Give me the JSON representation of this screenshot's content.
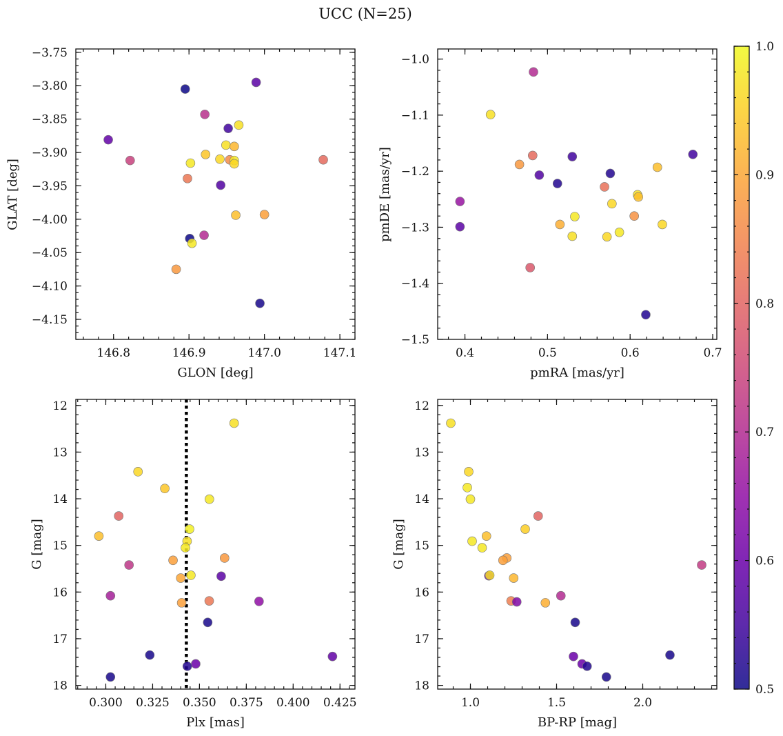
{
  "figure": {
    "title": "UCC (N=25)"
  },
  "colorbar": {
    "min": 0.5,
    "max": 1.0,
    "ticks": [
      0.5,
      0.6,
      0.7,
      0.8,
      0.9,
      1.0
    ],
    "tick_labels": [
      "0.5",
      "0.6",
      "0.7",
      "0.8",
      "0.9",
      "1.0"
    ],
    "colormap": "plasma"
  },
  "chart_data": [
    {
      "type": "scatter",
      "xlabel": "GLON [deg]",
      "ylabel": "GLAT [deg]",
      "xlim": [
        146.75,
        147.12
      ],
      "ylim": [
        -4.18,
        -3.745
      ],
      "y_inverted": false,
      "xticks": [
        146.8,
        146.9,
        147.0,
        147.1
      ],
      "xtick_labels": [
        "146.8",
        "146.9",
        "147.0",
        "147.1"
      ],
      "yticks": [
        -3.75,
        -3.8,
        -3.85,
        -3.9,
        -3.95,
        -4.0,
        -4.05,
        -4.1,
        -4.15
      ],
      "ytick_labels": [
        "−3.75",
        "−3.80",
        "−3.85",
        "−3.90",
        "−3.95",
        "−4.00",
        "−4.05",
        "−4.10",
        "−4.15"
      ],
      "points": [
        {
          "x": 146.895,
          "y": -3.805,
          "c": 0.5
        },
        {
          "x": 146.989,
          "y": -3.795,
          "c": 0.58
        },
        {
          "x": 146.921,
          "y": -3.843,
          "c": 0.71
        },
        {
          "x": 146.952,
          "y": -3.864,
          "c": 0.55
        },
        {
          "x": 146.966,
          "y": -3.859,
          "c": 0.97
        },
        {
          "x": 146.793,
          "y": -3.881,
          "c": 0.59
        },
        {
          "x": 146.822,
          "y": -3.912,
          "c": 0.74
        },
        {
          "x": 146.902,
          "y": -3.916,
          "c": 0.98
        },
        {
          "x": 146.922,
          "y": -3.903,
          "c": 0.94
        },
        {
          "x": 146.949,
          "y": -3.889,
          "c": 0.97
        },
        {
          "x": 146.96,
          "y": -3.891,
          "c": 0.92
        },
        {
          "x": 146.954,
          "y": -3.911,
          "c": 0.86
        },
        {
          "x": 146.941,
          "y": -3.91,
          "c": 0.96
        },
        {
          "x": 146.96,
          "y": -3.912,
          "c": 0.98
        },
        {
          "x": 146.96,
          "y": -3.917,
          "c": 0.96
        },
        {
          "x": 147.078,
          "y": -3.911,
          "c": 0.81
        },
        {
          "x": 146.898,
          "y": -3.939,
          "c": 0.83
        },
        {
          "x": 146.942,
          "y": -3.949,
          "c": 0.57
        },
        {
          "x": 146.962,
          "y": -3.994,
          "c": 0.93
        },
        {
          "x": 147.0,
          "y": -3.993,
          "c": 0.89
        },
        {
          "x": 146.92,
          "y": -4.024,
          "c": 0.7
        },
        {
          "x": 146.901,
          "y": -4.029,
          "c": 0.5
        },
        {
          "x": 146.904,
          "y": -4.036,
          "c": 0.98
        },
        {
          "x": 146.883,
          "y": -4.075,
          "c": 0.88
        },
        {
          "x": 146.994,
          "y": -4.126,
          "c": 0.51
        }
      ]
    },
    {
      "type": "scatter",
      "xlabel": "pmRA [mas/yr]",
      "ylabel": "pmDE [mas/yr]",
      "xlim": [
        0.367,
        0.705
      ],
      "ylim": [
        -1.5,
        -0.982
      ],
      "y_inverted": false,
      "xticks": [
        0.4,
        0.5,
        0.6,
        0.7
      ],
      "xtick_labels": [
        "0.4",
        "0.5",
        "0.6",
        "0.7"
      ],
      "yticks": [
        -1.0,
        -1.1,
        -1.2,
        -1.3,
        -1.4,
        -1.5
      ],
      "ytick_labels": [
        "−1.0",
        "−1.1",
        "−1.2",
        "−1.3",
        "−1.4",
        "−1.5"
      ],
      "points": [
        {
          "x": 0.483,
          "y": -1.023,
          "c": 0.7
        },
        {
          "x": 0.431,
          "y": -1.099,
          "c": 0.97
        },
        {
          "x": 0.466,
          "y": -1.188,
          "c": 0.88
        },
        {
          "x": 0.482,
          "y": -1.172,
          "c": 0.81
        },
        {
          "x": 0.49,
          "y": -1.207,
          "c": 0.57
        },
        {
          "x": 0.53,
          "y": -1.174,
          "c": 0.55
        },
        {
          "x": 0.576,
          "y": -1.204,
          "c": 0.52
        },
        {
          "x": 0.512,
          "y": -1.222,
          "c": 0.52
        },
        {
          "x": 0.569,
          "y": -1.228,
          "c": 0.82
        },
        {
          "x": 0.633,
          "y": -1.193,
          "c": 0.93
        },
        {
          "x": 0.676,
          "y": -1.17,
          "c": 0.55
        },
        {
          "x": 0.609,
          "y": -1.242,
          "c": 0.97
        },
        {
          "x": 0.61,
          "y": -1.246,
          "c": 0.93
        },
        {
          "x": 0.394,
          "y": -1.254,
          "c": 0.66
        },
        {
          "x": 0.578,
          "y": -1.258,
          "c": 0.96
        },
        {
          "x": 0.605,
          "y": -1.28,
          "c": 0.87
        },
        {
          "x": 0.533,
          "y": -1.281,
          "c": 0.98
        },
        {
          "x": 0.515,
          "y": -1.295,
          "c": 0.91
        },
        {
          "x": 0.639,
          "y": -1.295,
          "c": 0.96
        },
        {
          "x": 0.394,
          "y": -1.299,
          "c": 0.58
        },
        {
          "x": 0.587,
          "y": -1.309,
          "c": 0.98
        },
        {
          "x": 0.53,
          "y": -1.316,
          "c": 0.97
        },
        {
          "x": 0.572,
          "y": -1.317,
          "c": 0.96
        },
        {
          "x": 0.479,
          "y": -1.372,
          "c": 0.78
        },
        {
          "x": 0.619,
          "y": -1.456,
          "c": 0.52
        }
      ]
    },
    {
      "type": "scatter",
      "xlabel": "Plx [mas]",
      "ylabel": "G [mag]",
      "xlim": [
        0.284,
        0.433
      ],
      "ylim": [
        11.87,
        18.08
      ],
      "y_inverted": true,
      "xticks": [
        0.3,
        0.325,
        0.35,
        0.375,
        0.4,
        0.425
      ],
      "xtick_labels": [
        "0.300",
        "0.325",
        "0.350",
        "0.375",
        "0.400",
        "0.425"
      ],
      "yticks": [
        12,
        13,
        14,
        15,
        16,
        17,
        18
      ],
      "ytick_labels": [
        "12",
        "13",
        "14",
        "15",
        "16",
        "17",
        "18"
      ],
      "vline": 0.343,
      "points": [
        {
          "x": 0.3685,
          "y": 12.38,
          "c": 0.97
        },
        {
          "x": 0.3172,
          "y": 13.42,
          "c": 0.96
        },
        {
          "x": 0.3315,
          "y": 13.78,
          "c": 0.94
        },
        {
          "x": 0.3553,
          "y": 14.01,
          "c": 0.98
        },
        {
          "x": 0.3069,
          "y": 14.37,
          "c": 0.8
        },
        {
          "x": 0.3447,
          "y": 14.65,
          "c": 0.99
        },
        {
          "x": 0.2963,
          "y": 14.8,
          "c": 0.93
        },
        {
          "x": 0.3434,
          "y": 14.91,
          "c": 0.97
        },
        {
          "x": 0.3425,
          "y": 15.05,
          "c": 0.98
        },
        {
          "x": 0.3634,
          "y": 15.27,
          "c": 0.88
        },
        {
          "x": 0.3359,
          "y": 15.32,
          "c": 0.89
        },
        {
          "x": 0.3124,
          "y": 15.42,
          "c": 0.72
        },
        {
          "x": 0.3454,
          "y": 15.64,
          "c": 0.98
        },
        {
          "x": 0.3616,
          "y": 15.66,
          "c": 0.58
        },
        {
          "x": 0.34,
          "y": 15.7,
          "c": 0.9
        },
        {
          "x": 0.3025,
          "y": 16.08,
          "c": 0.68
        },
        {
          "x": 0.3552,
          "y": 16.19,
          "c": 0.83
        },
        {
          "x": 0.3818,
          "y": 16.2,
          "c": 0.65
        },
        {
          "x": 0.3405,
          "y": 16.23,
          "c": 0.89
        },
        {
          "x": 0.3544,
          "y": 16.65,
          "c": 0.51
        },
        {
          "x": 0.3235,
          "y": 17.35,
          "c": 0.51
        },
        {
          "x": 0.421,
          "y": 17.38,
          "c": 0.59
        },
        {
          "x": 0.348,
          "y": 17.54,
          "c": 0.6
        },
        {
          "x": 0.3435,
          "y": 17.59,
          "c": 0.52
        },
        {
          "x": 0.3025,
          "y": 17.82,
          "c": 0.51
        }
      ]
    },
    {
      "type": "scatter",
      "xlabel": "BP-RP [mag]",
      "ylabel": "G [mag]",
      "xlim": [
        0.81,
        2.43
      ],
      "ylim": [
        11.87,
        18.08
      ],
      "y_inverted": true,
      "xticks": [
        1.0,
        1.5,
        2.0
      ],
      "xtick_labels": [
        "1.0",
        "1.5",
        "2.0"
      ],
      "yticks": [
        12,
        13,
        14,
        15,
        16,
        17,
        18
      ],
      "ytick_labels": [
        "12",
        "13",
        "14",
        "15",
        "16",
        "17",
        "18"
      ],
      "points": [
        {
          "x": 0.886,
          "y": 12.38,
          "c": 0.97
        },
        {
          "x": 0.99,
          "y": 13.42,
          "c": 0.96
        },
        {
          "x": 0.982,
          "y": 13.76,
          "c": 0.98
        },
        {
          "x": 1.0,
          "y": 14.01,
          "c": 0.98
        },
        {
          "x": 1.393,
          "y": 14.37,
          "c": 0.8
        },
        {
          "x": 1.318,
          "y": 14.65,
          "c": 0.95
        },
        {
          "x": 1.093,
          "y": 14.8,
          "c": 0.93
        },
        {
          "x": 1.01,
          "y": 14.91,
          "c": 0.98
        },
        {
          "x": 1.068,
          "y": 15.05,
          "c": 0.98
        },
        {
          "x": 1.211,
          "y": 15.27,
          "c": 0.89
        },
        {
          "x": 1.189,
          "y": 15.32,
          "c": 0.89
        },
        {
          "x": 2.342,
          "y": 15.42,
          "c": 0.73
        },
        {
          "x": 1.107,
          "y": 15.65,
          "c": 0.6
        },
        {
          "x": 1.112,
          "y": 15.64,
          "c": 0.97
        },
        {
          "x": 1.251,
          "y": 15.7,
          "c": 0.92
        },
        {
          "x": 1.525,
          "y": 16.08,
          "c": 0.7
        },
        {
          "x": 1.236,
          "y": 16.19,
          "c": 0.84
        },
        {
          "x": 1.269,
          "y": 16.21,
          "c": 0.63
        },
        {
          "x": 1.435,
          "y": 16.23,
          "c": 0.91
        },
        {
          "x": 1.608,
          "y": 16.65,
          "c": 0.51
        },
        {
          "x": 2.158,
          "y": 17.35,
          "c": 0.51
        },
        {
          "x": 1.598,
          "y": 17.38,
          "c": 0.6
        },
        {
          "x": 1.648,
          "y": 17.54,
          "c": 0.6
        },
        {
          "x": 1.677,
          "y": 17.59,
          "c": 0.52
        },
        {
          "x": 1.789,
          "y": 17.82,
          "c": 0.51
        }
      ]
    }
  ]
}
